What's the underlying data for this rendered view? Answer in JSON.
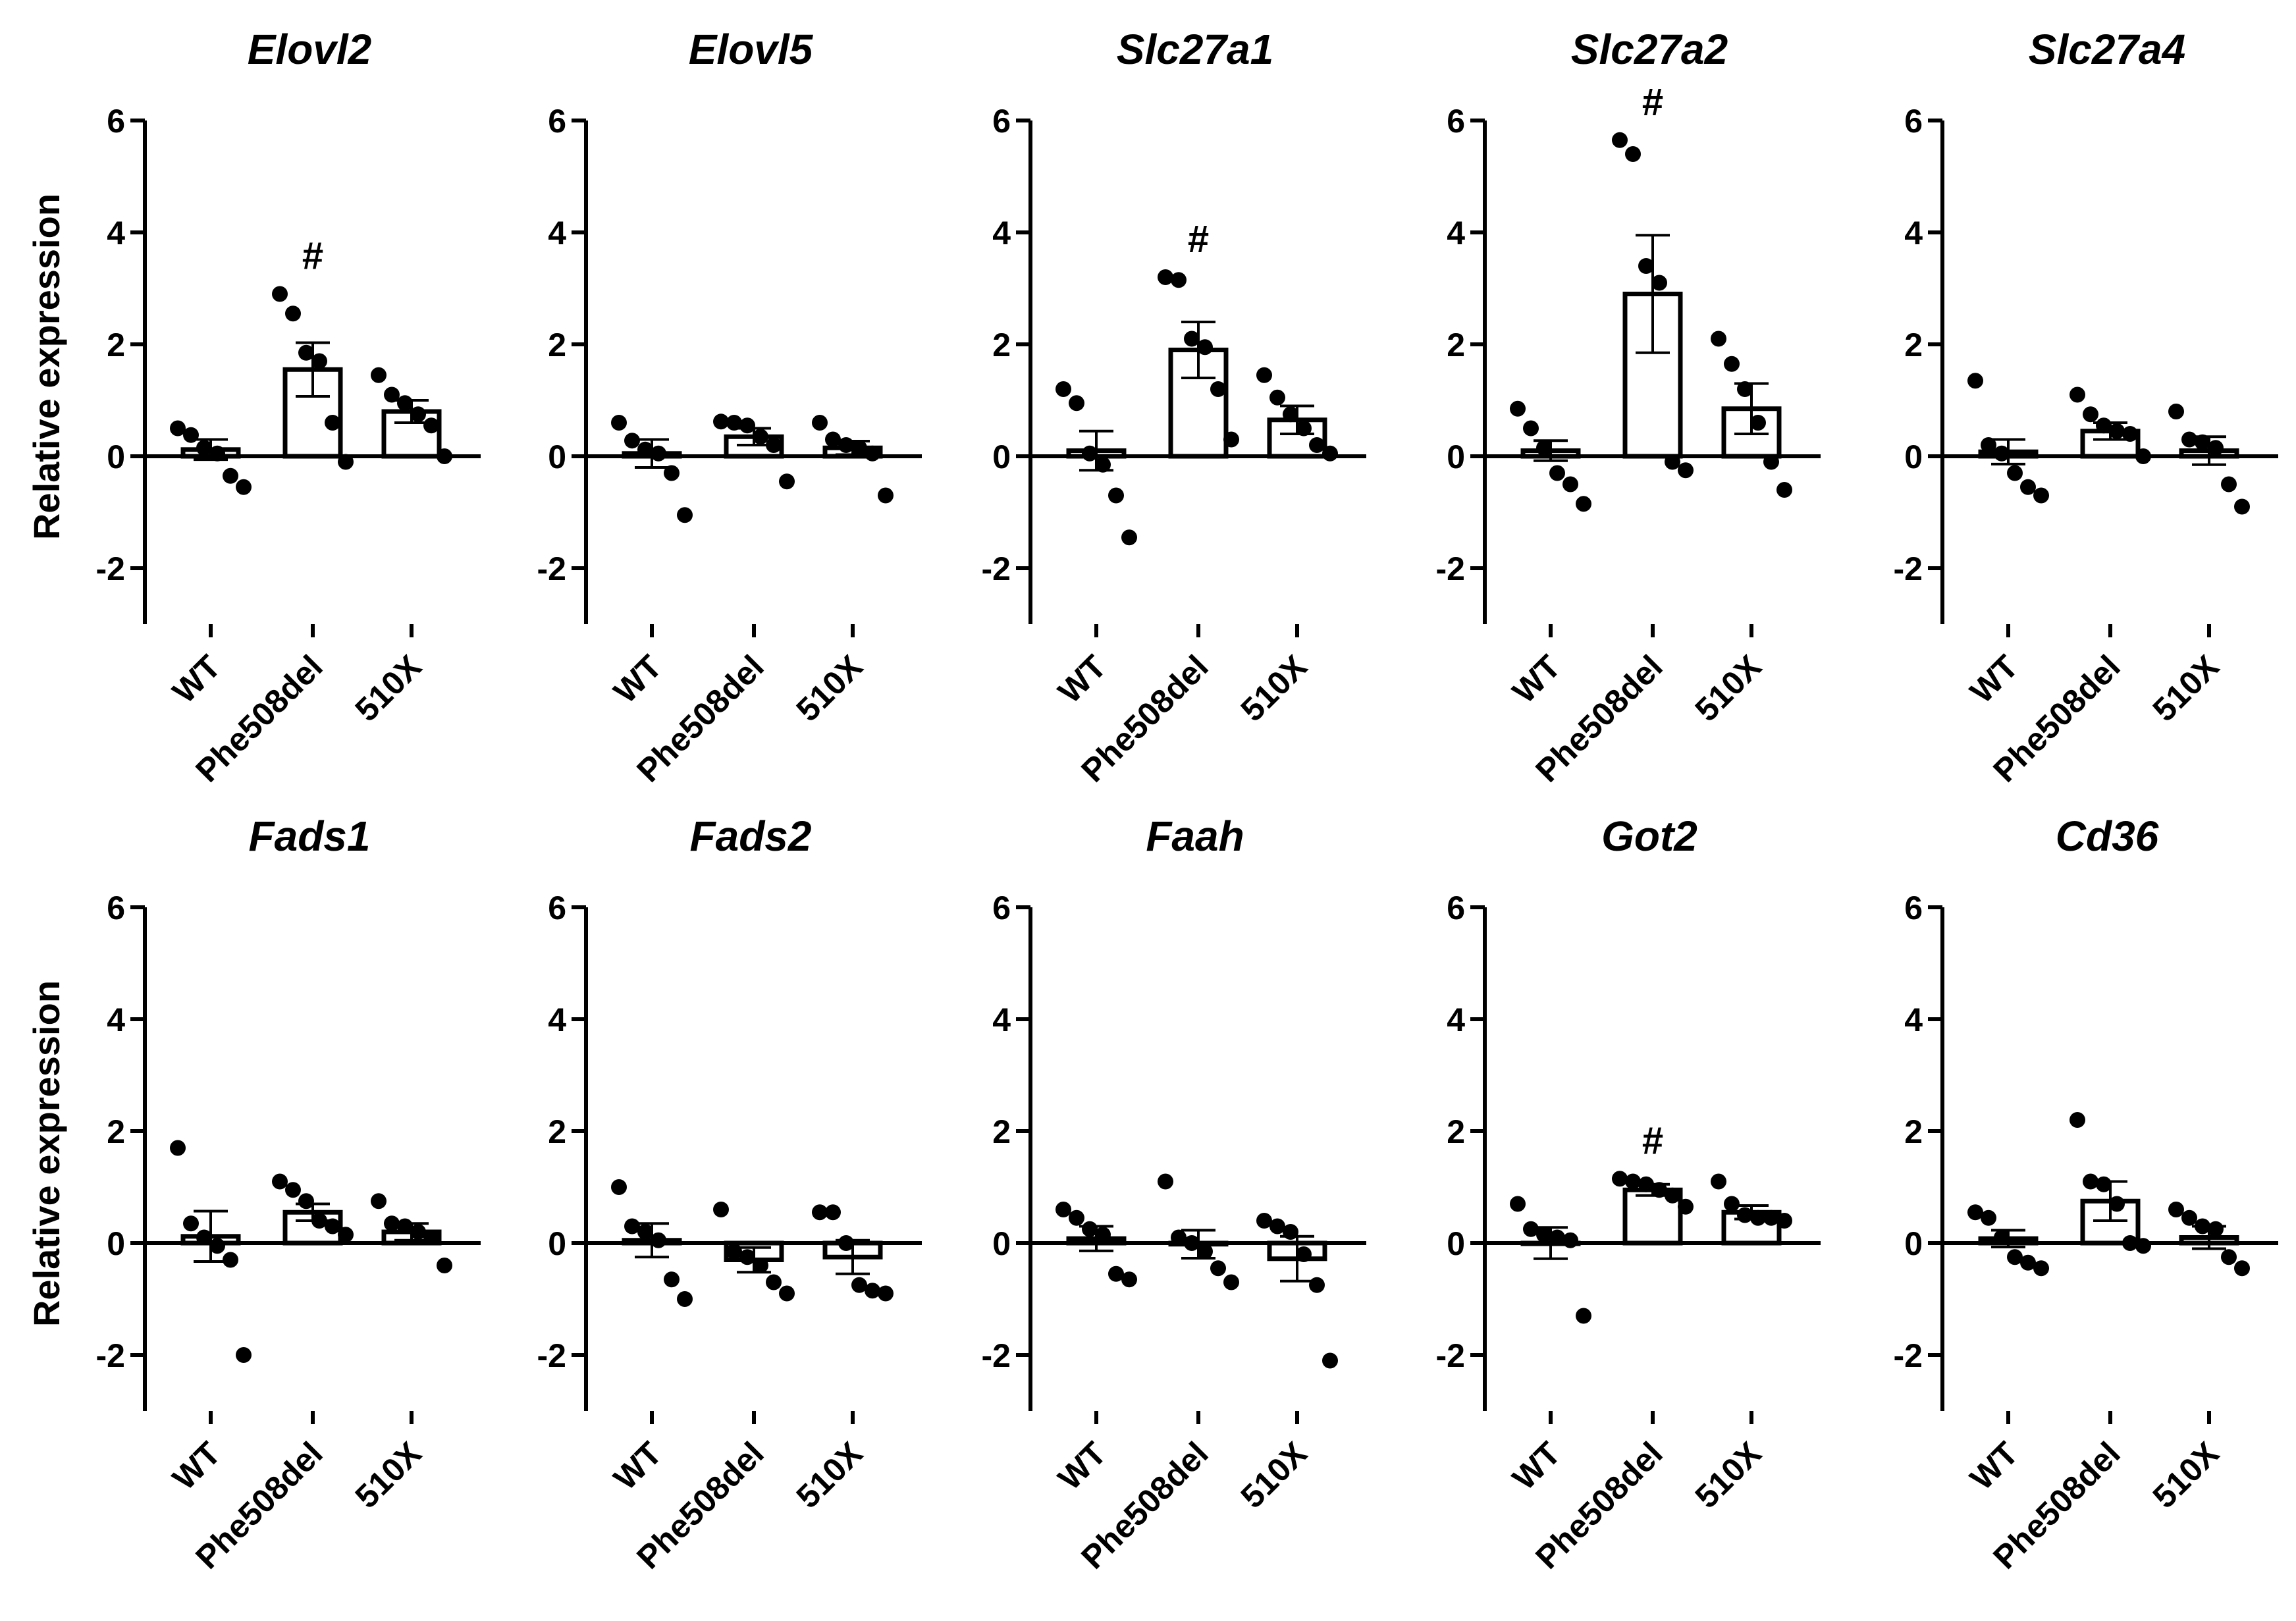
{
  "figure": {
    "ylabel": "Relative expression",
    "categories": [
      "WT",
      "Phe508del",
      "510X"
    ],
    "y_ticks": [
      -2,
      0,
      2,
      4,
      6
    ]
  },
  "chart_data": [
    {
      "type": "bar",
      "title": "Elovl2",
      "xlabel": "",
      "ylabel": "Relative expression",
      "categories": [
        "WT",
        "Phe508del",
        "510X"
      ],
      "ylim": [
        -3,
        6
      ],
      "yticks": [
        -2,
        0,
        2,
        4,
        6
      ],
      "means": [
        0.12,
        1.55,
        0.8
      ],
      "sem": [
        0.18,
        0.48,
        0.2
      ],
      "points": [
        [
          0.5,
          0.38,
          0.15,
          0.05,
          -0.35,
          -0.55
        ],
        [
          2.9,
          2.55,
          1.85,
          1.7,
          0.6,
          -0.1
        ],
        [
          1.45,
          1.1,
          0.95,
          0.75,
          0.55,
          0.0
        ]
      ],
      "significance": [
        "",
        "#",
        ""
      ]
    },
    {
      "type": "bar",
      "title": "Elovl5",
      "xlabel": "",
      "ylabel": "Relative expression",
      "categories": [
        "WT",
        "Phe508del",
        "510X"
      ],
      "ylim": [
        -3,
        6
      ],
      "yticks": [
        -2,
        0,
        2,
        4,
        6
      ],
      "means": [
        0.05,
        0.35,
        0.15
      ],
      "sem": [
        0.25,
        0.15,
        0.12
      ],
      "points": [
        [
          0.6,
          0.28,
          0.12,
          0.05,
          -0.3,
          -1.05
        ],
        [
          0.62,
          0.6,
          0.55,
          0.35,
          0.2,
          -0.45
        ],
        [
          0.6,
          0.3,
          0.2,
          0.15,
          0.05,
          -0.7
        ]
      ],
      "significance": [
        "",
        "",
        ""
      ]
    },
    {
      "type": "bar",
      "title": "Slc27a1",
      "xlabel": "",
      "ylabel": "Relative expression",
      "categories": [
        "WT",
        "Phe508del",
        "510X"
      ],
      "ylim": [
        -3,
        6
      ],
      "yticks": [
        -2,
        0,
        2,
        4,
        6
      ],
      "means": [
        0.1,
        1.9,
        0.65
      ],
      "sem": [
        0.35,
        0.5,
        0.25
      ],
      "points": [
        [
          1.2,
          0.95,
          0.05,
          -0.15,
          -0.7,
          -1.45
        ],
        [
          3.2,
          3.15,
          2.1,
          1.95,
          1.2,
          0.3
        ],
        [
          1.45,
          1.05,
          0.75,
          0.5,
          0.2,
          0.05
        ]
      ],
      "significance": [
        "",
        "#",
        ""
      ]
    },
    {
      "type": "bar",
      "title": "Slc27a2",
      "xlabel": "",
      "ylabel": "Relative expression",
      "categories": [
        "WT",
        "Phe508del",
        "510X"
      ],
      "ylim": [
        -3,
        6
      ],
      "yticks": [
        -2,
        0,
        2,
        4,
        6
      ],
      "means": [
        0.1,
        2.9,
        0.85
      ],
      "sem": [
        0.18,
        1.05,
        0.45
      ],
      "points": [
        [
          0.85,
          0.5,
          0.15,
          -0.3,
          -0.5,
          -0.85
        ],
        [
          5.65,
          5.4,
          3.4,
          3.1,
          -0.1,
          -0.25
        ],
        [
          2.1,
          1.65,
          1.2,
          0.6,
          -0.1,
          -0.6
        ]
      ],
      "significance": [
        "",
        "#",
        ""
      ]
    },
    {
      "type": "bar",
      "title": "Slc27a4",
      "xlabel": "",
      "ylabel": "Relative expression",
      "categories": [
        "WT",
        "Phe508del",
        "510X"
      ],
      "ylim": [
        -3,
        6
      ],
      "yticks": [
        -2,
        0,
        2,
        4,
        6
      ],
      "means": [
        0.08,
        0.45,
        0.1
      ],
      "sem": [
        0.22,
        0.15,
        0.25
      ],
      "points": [
        [
          1.35,
          0.2,
          0.05,
          -0.3,
          -0.55,
          -0.7
        ],
        [
          1.1,
          0.75,
          0.55,
          0.45,
          0.4,
          0.0
        ],
        [
          0.8,
          0.3,
          0.25,
          0.15,
          -0.5,
          -0.9
        ]
      ],
      "significance": [
        "",
        "",
        ""
      ]
    },
    {
      "type": "bar",
      "title": "Fads1",
      "xlabel": "",
      "ylabel": "Relative expression",
      "categories": [
        "WT",
        "Phe508del",
        "510X"
      ],
      "ylim": [
        -3,
        6
      ],
      "yticks": [
        -2,
        0,
        2,
        4,
        6
      ],
      "means": [
        0.12,
        0.55,
        0.2
      ],
      "sem": [
        0.45,
        0.15,
        0.15
      ],
      "points": [
        [
          1.7,
          0.35,
          0.1,
          -0.05,
          -0.3,
          -2.0
        ],
        [
          1.1,
          0.95,
          0.75,
          0.4,
          0.3,
          0.15
        ],
        [
          0.75,
          0.35,
          0.3,
          0.2,
          0.1,
          -0.4
        ]
      ],
      "significance": [
        "",
        "",
        ""
      ]
    },
    {
      "type": "bar",
      "title": "Fads2",
      "xlabel": "",
      "ylabel": "Relative expression",
      "categories": [
        "WT",
        "Phe508del",
        "510X"
      ],
      "ylim": [
        -3,
        6
      ],
      "yticks": [
        -2,
        0,
        2,
        4,
        6
      ],
      "means": [
        0.05,
        -0.3,
        -0.25
      ],
      "sem": [
        0.3,
        0.22,
        0.3
      ],
      "points": [
        [
          1.0,
          0.3,
          0.2,
          0.05,
          -0.65,
          -1.0
        ],
        [
          0.6,
          -0.15,
          -0.25,
          -0.4,
          -0.7,
          -0.9
        ],
        [
          0.55,
          0.55,
          0.0,
          -0.75,
          -0.85,
          -0.9
        ]
      ],
      "significance": [
        "",
        "",
        ""
      ]
    },
    {
      "type": "bar",
      "title": "Faah",
      "xlabel": "",
      "ylabel": "Relative expression",
      "categories": [
        "WT",
        "Phe508del",
        "510X"
      ],
      "ylim": [
        -3,
        6
      ],
      "yticks": [
        -2,
        0,
        2,
        4,
        6
      ],
      "means": [
        0.08,
        -0.02,
        -0.28
      ],
      "sem": [
        0.22,
        0.25,
        0.4
      ],
      "points": [
        [
          0.6,
          0.45,
          0.25,
          0.15,
          -0.55,
          -0.65
        ],
        [
          1.1,
          0.1,
          0.0,
          -0.15,
          -0.45,
          -0.7
        ],
        [
          0.4,
          0.3,
          0.2,
          -0.2,
          -0.75,
          -2.1
        ]
      ],
      "significance": [
        "",
        "",
        ""
      ]
    },
    {
      "type": "bar",
      "title": "Got2",
      "xlabel": "",
      "ylabel": "Relative expression",
      "categories": [
        "WT",
        "Phe508del",
        "510X"
      ],
      "ylim": [
        -3,
        6
      ],
      "yticks": [
        -2,
        0,
        2,
        4,
        6
      ],
      "means": [
        0.0,
        0.95,
        0.55
      ],
      "sem": [
        0.28,
        0.1,
        0.12
      ],
      "points": [
        [
          0.7,
          0.25,
          0.15,
          0.1,
          0.05,
          -1.3
        ],
        [
          1.15,
          1.1,
          1.05,
          0.95,
          0.85,
          0.65
        ],
        [
          1.1,
          0.7,
          0.5,
          0.45,
          0.45,
          0.4
        ]
      ],
      "significance": [
        "",
        "#",
        ""
      ]
    },
    {
      "type": "bar",
      "title": "Cd36",
      "xlabel": "",
      "ylabel": "Relative expression",
      "categories": [
        "WT",
        "Phe508del",
        "510X"
      ],
      "ylim": [
        -3,
        6
      ],
      "yticks": [
        -2,
        0,
        2,
        4,
        6
      ],
      "means": [
        0.08,
        0.75,
        0.1
      ],
      "sem": [
        0.15,
        0.35,
        0.2
      ],
      "points": [
        [
          0.55,
          0.45,
          0.1,
          -0.25,
          -0.35,
          -0.45
        ],
        [
          2.2,
          1.1,
          1.05,
          0.7,
          0.0,
          -0.05
        ],
        [
          0.6,
          0.45,
          0.3,
          0.25,
          -0.25,
          -0.45
        ]
      ],
      "significance": [
        "",
        "",
        ""
      ]
    }
  ]
}
